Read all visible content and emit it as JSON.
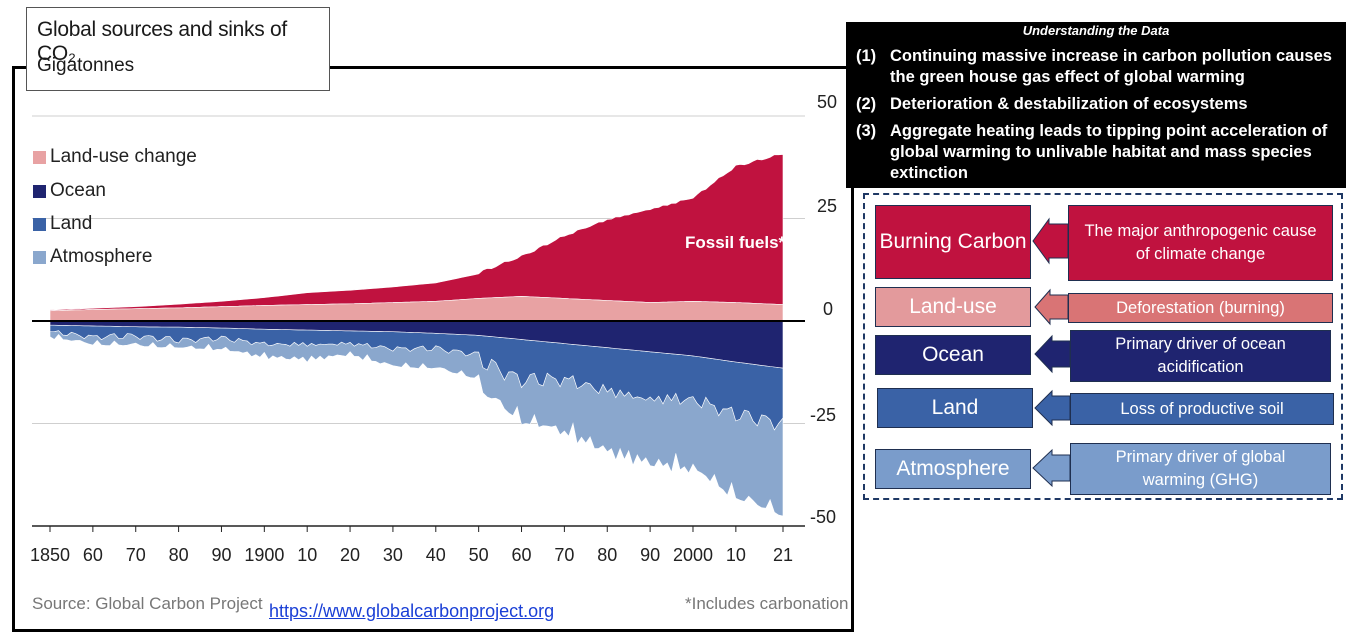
{
  "chart_data": {
    "type": "area",
    "title": "Global sources and sinks of CO₂",
    "subtitle": "Gigatonnes",
    "ylabel": "",
    "xlabel": "",
    "ylim": [
      -50,
      50
    ],
    "xlim": [
      1850,
      2021
    ],
    "yticks": [
      "50",
      "25",
      "0",
      "-25",
      "-50"
    ],
    "xticks": [
      "1850",
      "60",
      "70",
      "80",
      "90",
      "1900",
      "10",
      "20",
      "30",
      "40",
      "50",
      "60",
      "70",
      "80",
      "90",
      "2000",
      "10",
      "21"
    ],
    "legend": [
      "Land-use change",
      "Ocean",
      "Land",
      "Atmosphere"
    ],
    "annotation": "Fossil fuels*",
    "source": "Source: Global Carbon Project",
    "note": "*Includes carbonation",
    "x": [
      1850,
      1860,
      1870,
      1880,
      1890,
      1900,
      1910,
      1920,
      1930,
      1940,
      1950,
      1960,
      1970,
      1980,
      1990,
      2000,
      2010,
      2021
    ],
    "series": [
      {
        "name": "Land-use change",
        "values": [
          2.5,
          2.8,
          3.0,
          3.2,
          3.5,
          3.8,
          4.0,
          4.2,
          4.5,
          4.8,
          5.5,
          6.0,
          5.5,
          5.0,
          4.5,
          4.8,
          4.5,
          4.0
        ]
      },
      {
        "name": "Fossil fuels*",
        "values": [
          0.2,
          0.3,
          0.5,
          0.9,
          1.3,
          1.9,
          2.9,
          3.3,
          3.8,
          4.5,
          6.0,
          9.5,
          15.0,
          19.5,
          22.5,
          25.0,
          33.0,
          36.5
        ]
      },
      {
        "name": "Ocean",
        "values": [
          -1.0,
          -1.2,
          -1.4,
          -1.5,
          -1.7,
          -2.0,
          -2.2,
          -2.4,
          -2.6,
          -3.0,
          -3.5,
          -4.5,
          -5.5,
          -6.5,
          -7.5,
          -8.5,
          -10.0,
          -11.5
        ]
      },
      {
        "name": "Land",
        "values": [
          -1.0,
          -2.0,
          -1.5,
          -2.5,
          -1.8,
          -3.0,
          -3.0,
          -2.5,
          -3.5,
          -3.0,
          -4.0,
          -8.0,
          -7.0,
          -9.0,
          -10.0,
          -9.0,
          -11.0,
          -11.5
        ]
      },
      {
        "name": "Atmosphere",
        "values": [
          -0.5,
          -1.0,
          -1.5,
          -1.0,
          -2.0,
          -2.5,
          -3.0,
          -2.0,
          -3.5,
          -4.0,
          -5.0,
          -8.0,
          -11.0,
          -13.0,
          -14.0,
          -15.0,
          -18.0,
          -20.0
        ]
      }
    ]
  },
  "link_text": "https://www.globalcarbonproject.org",
  "understanding": {
    "header": "Understanding the Data",
    "points": [
      {
        "num": "(1)",
        "text": "Continuing massive increase in carbon pollution causes the green house gas effect of global warming"
      },
      {
        "num": "(2)",
        "text": "Deterioration & destabilization of ecosystems"
      },
      {
        "num": "(3)",
        "text": "Aggregate heating leads to tipping point acceleration of global warming to unlivable habitat and mass species extinction"
      }
    ]
  },
  "diagram": {
    "rows": [
      {
        "left": "Burning Carbon",
        "right": "The major  anthropogenic cause of climate change",
        "color": "#c0123f"
      },
      {
        "left": "Land-use",
        "right": "Deforestation (burning)",
        "color": "#e39a9c",
        "right_color": "#d97475"
      },
      {
        "left": "Ocean",
        "right": "Primary driver of ocean acidification",
        "color": "#1f2470"
      },
      {
        "left": "Land",
        "right": "Loss of productive soil",
        "color": "#3a62a6"
      },
      {
        "left": "Atmosphere",
        "right": "Primary driver of global warming (GHG)",
        "color": "#7a9ccb"
      }
    ]
  },
  "colors": {
    "fossil": "#c0123f",
    "landuse": "#e8a2a3",
    "ocean": "#1f2470",
    "land": "#3a62a6",
    "atmosphere": "#8aa7cd"
  }
}
